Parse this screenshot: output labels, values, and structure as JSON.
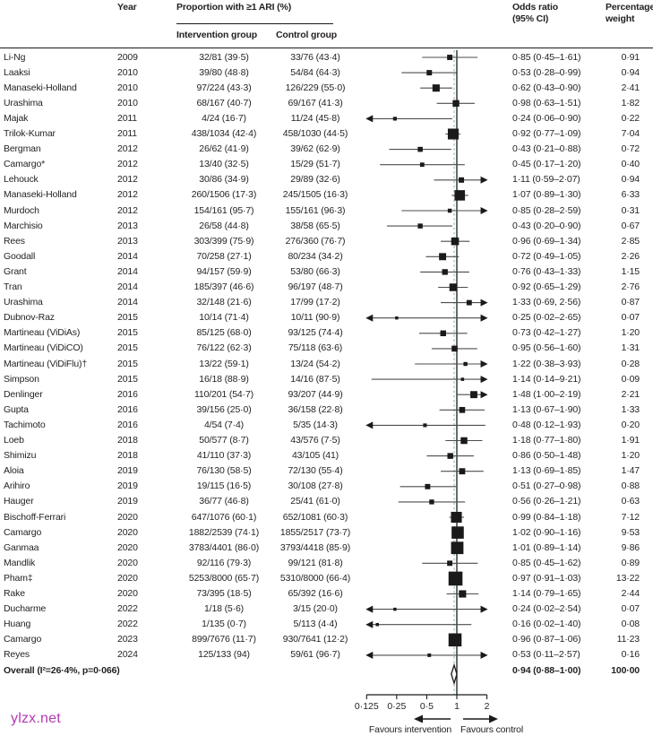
{
  "header": {
    "col_year": "Year",
    "col_proportion": "Proportion with ≥1 ARI (%)",
    "col_intervention": "Intervention group",
    "col_control": "Control group",
    "col_odds_ratio": "Odds ratio (95% CI)",
    "col_weight": "Percentage weight"
  },
  "watermark": "ylzx.net",
  "colors": {
    "text": "#231f20",
    "marker": "#1a1a1a",
    "ci_line": "#4d4d4d",
    "dashed_overall_line": "#a5c7cd",
    "watermark": "#b23ab2"
  },
  "chart_data": {
    "type": "forest",
    "title": "",
    "xlabel_left": "Favours intervention",
    "xlabel_right": "Favours control",
    "favours_left": "Favours intervention",
    "favours_right": "Favours control",
    "axis": {
      "scale": "log2",
      "min": 0.125,
      "max": 2,
      "null_line": 1,
      "ticks": [
        0.125,
        0.25,
        0.5,
        1,
        2
      ],
      "tick_labels": [
        "0·125",
        "0·25",
        "0·5",
        "1",
        "2"
      ]
    },
    "rows": [
      {
        "study": "Li-Ng",
        "year": "2009",
        "intervention": "32/81 (39·5)",
        "control": "33/76 (43·4)",
        "or_text": "0·85 (0·45–1·61)",
        "or": 0.85,
        "lo": 0.45,
        "hi": 1.61,
        "weight_text": "0·91",
        "weight": 0.91
      },
      {
        "study": "Laaksi",
        "year": "2010",
        "intervention": "39/80 (48·8)",
        "control": "54/84 (64·3)",
        "or_text": "0·53 (0·28–0·99)",
        "or": 0.53,
        "lo": 0.28,
        "hi": 0.99,
        "weight_text": "0·94",
        "weight": 0.94
      },
      {
        "study": "Manaseki-Holland",
        "year": "2010",
        "intervention": "97/224 (43·3)",
        "control": "126/229 (55·0)",
        "or_text": "0·62 (0·43–0·90)",
        "or": 0.62,
        "lo": 0.43,
        "hi": 0.9,
        "weight_text": "2·41",
        "weight": 2.41
      },
      {
        "study": "Urashima",
        "year": "2010",
        "intervention": "68/167 (40·7)",
        "control": "69/167 (41·3)",
        "or_text": "0·98 (0·63–1·51)",
        "or": 0.98,
        "lo": 0.63,
        "hi": 1.51,
        "weight_text": "1·82",
        "weight": 1.82
      },
      {
        "study": "Majak",
        "year": "2011",
        "intervention": "4/24 (16·7)",
        "control": "11/24 (45·8)",
        "or_text": "0·24 (0·06–0·90)",
        "or": 0.24,
        "lo": 0.06,
        "hi": 0.9,
        "weight_text": "0·22",
        "weight": 0.22
      },
      {
        "study": "Trilok-Kumar",
        "year": "2011",
        "intervention": "438/1034 (42·4)",
        "control": "458/1030 (44·5)",
        "or_text": "0·92 (0·77–1·09)",
        "or": 0.92,
        "lo": 0.77,
        "hi": 1.09,
        "weight_text": "7·04",
        "weight": 7.04
      },
      {
        "study": "Bergman",
        "year": "2012",
        "intervention": "26/62 (41·9)",
        "control": "39/62 (62·9)",
        "or_text": "0·43 (0·21–0·88)",
        "or": 0.43,
        "lo": 0.21,
        "hi": 0.88,
        "weight_text": "0·72",
        "weight": 0.72
      },
      {
        "study": "Camargo*",
        "year": "2012",
        "intervention": "13/40 (32·5)",
        "control": "15/29 (51·7)",
        "or_text": "0·45 (0·17–1·20)",
        "or": 0.45,
        "lo": 0.17,
        "hi": 1.2,
        "weight_text": "0·40",
        "weight": 0.4
      },
      {
        "study": "Lehouck",
        "year": "2012",
        "intervention": "30/86 (34·9)",
        "control": "29/89 (32·6)",
        "or_text": "1·11 (0·59–2·07)",
        "or": 1.11,
        "lo": 0.59,
        "hi": 2.07,
        "weight_text": "0·94",
        "weight": 0.94
      },
      {
        "study": "Manaseki-Holland",
        "year": "2012",
        "intervention": "260/1506 (17·3)",
        "control": "245/1505 (16·3)",
        "or_text": "1·07 (0·89–1·30)",
        "or": 1.07,
        "lo": 0.89,
        "hi": 1.3,
        "weight_text": "6·33",
        "weight": 6.33
      },
      {
        "study": "Murdoch",
        "year": "2012",
        "intervention": "154/161 (95·7)",
        "control": "155/161 (96·3)",
        "or_text": "0·85 (0·28–2·59)",
        "or": 0.85,
        "lo": 0.28,
        "hi": 2.59,
        "weight_text": "0·31",
        "weight": 0.31
      },
      {
        "study": "Marchisio",
        "year": "2013",
        "intervention": "26/58 (44·8)",
        "control": "38/58 (65·5)",
        "or_text": "0·43 (0·20–0·90)",
        "or": 0.43,
        "lo": 0.2,
        "hi": 0.9,
        "weight_text": "0·67",
        "weight": 0.67
      },
      {
        "study": "Rees",
        "year": "2013",
        "intervention": "303/399 (75·9)",
        "control": "276/360 (76·7)",
        "or_text": "0·96 (0·69–1·34)",
        "or": 0.96,
        "lo": 0.69,
        "hi": 1.34,
        "weight_text": "2·85",
        "weight": 2.85
      },
      {
        "study": "Goodall",
        "year": "2014",
        "intervention": "70/258 (27·1)",
        "control": "80/234 (34·2)",
        "or_text": "0·72 (0·49–1·05)",
        "or": 0.72,
        "lo": 0.49,
        "hi": 1.05,
        "weight_text": "2·26",
        "weight": 2.26
      },
      {
        "study": "Grant",
        "year": "2014",
        "intervention": "94/157 (59·9)",
        "control": "53/80 (66·3)",
        "or_text": "0·76 (0·43–1·33)",
        "or": 0.76,
        "lo": 0.43,
        "hi": 1.33,
        "weight_text": "1·15",
        "weight": 1.15
      },
      {
        "study": "Tran",
        "year": "2014",
        "intervention": "185/397 (46·6)",
        "control": "96/197 (48·7)",
        "or_text": "0·92 (0·65–1·29)",
        "or": 0.92,
        "lo": 0.65,
        "hi": 1.29,
        "weight_text": "2·76",
        "weight": 2.76
      },
      {
        "study": "Urashima",
        "year": "2014",
        "intervention": "32/148 (21·6)",
        "control": "17/99 (17·2)",
        "or_text": "1·33 (0·69, 2·56)",
        "or": 1.33,
        "lo": 0.69,
        "hi": 2.56,
        "weight_text": "0·87",
        "weight": 0.87
      },
      {
        "study": "Dubnov-Raz",
        "year": "2015",
        "intervention": "10/14 (71·4)",
        "control": "10/11 (90·9)",
        "or_text": "0·25 (0·02–2·65)",
        "or": 0.25,
        "lo": 0.02,
        "hi": 2.65,
        "weight_text": "0·07",
        "weight": 0.07
      },
      {
        "study": "Martineau (ViDiAs)",
        "year": "2015",
        "intervention": "85/125 (68·0)",
        "control": "93/125 (74·4)",
        "or_text": "0·73 (0·42–1·27)",
        "or": 0.73,
        "lo": 0.42,
        "hi": 1.27,
        "weight_text": "1·20",
        "weight": 1.2
      },
      {
        "study": "Martineau (ViDiCO)",
        "year": "2015",
        "intervention": "76/122 (62·3)",
        "control": "75/118 (63·6)",
        "or_text": "0·95 (0·56–1·60)",
        "or": 0.95,
        "lo": 0.56,
        "hi": 1.6,
        "weight_text": "1·31",
        "weight": 1.31
      },
      {
        "study": "Martineau (ViDiFlu)†",
        "year": "2015",
        "intervention": "13/22 (59·1)",
        "control": "13/24 (54·2)",
        "or_text": "1·22 (0·38–3·93)",
        "or": 1.22,
        "lo": 0.38,
        "hi": 3.93,
        "weight_text": "0·28",
        "weight": 0.28
      },
      {
        "study": "Simpson",
        "year": "2015",
        "intervention": "16/18 (88·9)",
        "control": "14/16 (87·5)",
        "or_text": "1·14 (0·14–9·21)",
        "or": 1.14,
        "lo": 0.14,
        "hi": 9.21,
        "weight_text": "0·09",
        "weight": 0.09
      },
      {
        "study": "Denlinger",
        "year": "2016",
        "intervention": "110/201 (54·7)",
        "control": "93/207 (44·9)",
        "or_text": "1·48 (1·00–2·19)",
        "or": 1.48,
        "lo": 1.0,
        "hi": 2.19,
        "weight_text": "2·21",
        "weight": 2.21
      },
      {
        "study": "Gupta",
        "year": "2016",
        "intervention": "39/156 (25·0)",
        "control": "36/158 (22·8)",
        "or_text": "1·13 (0·67–1·90)",
        "or": 1.13,
        "lo": 0.67,
        "hi": 1.9,
        "weight_text": "1·33",
        "weight": 1.33
      },
      {
        "study": "Tachimoto",
        "year": "2016",
        "intervention": "4/54 (7·4)",
        "control": "5/35 (14·3)",
        "or_text": "0·48 (0·12–1·93)",
        "or": 0.48,
        "lo": 0.12,
        "hi": 1.93,
        "weight_text": "0·20",
        "weight": 0.2
      },
      {
        "study": "Loeb",
        "year": "2018",
        "intervention": "50/577 (8·7)",
        "control": "43/576 (7·5)",
        "or_text": "1·18 (0·77–1·80)",
        "or": 1.18,
        "lo": 0.77,
        "hi": 1.8,
        "weight_text": "1·91",
        "weight": 1.91
      },
      {
        "study": "Shimizu",
        "year": "2018",
        "intervention": "41/110 (37·3)",
        "control": "43/105 (41)",
        "or_text": "0·86 (0·50–1·48)",
        "or": 0.86,
        "lo": 0.5,
        "hi": 1.48,
        "weight_text": "1·20",
        "weight": 1.2
      },
      {
        "study": "Aloia",
        "year": "2019",
        "intervention": "76/130 (58·5)",
        "control": "72/130 (55·4)",
        "or_text": "1·13 (0·69–1·85)",
        "or": 1.13,
        "lo": 0.69,
        "hi": 1.85,
        "weight_text": "1·47",
        "weight": 1.47
      },
      {
        "study": "Arihiro",
        "year": "2019",
        "intervention": "19/115 (16·5)",
        "control": "30/108 (27·8)",
        "or_text": "0·51 (0·27–0·98)",
        "or": 0.51,
        "lo": 0.27,
        "hi": 0.98,
        "weight_text": "0·88",
        "weight": 0.88
      },
      {
        "study": "Hauger",
        "year": "2019",
        "intervention": "36/77 (46·8)",
        "control": "25/41 (61·0)",
        "or_text": "0·56 (0·26–1·21)",
        "or": 0.56,
        "lo": 0.26,
        "hi": 1.21,
        "weight_text": "0·63",
        "weight": 0.63
      },
      {
        "study": "Bischoff-Ferrari",
        "year": "2020",
        "intervention": "647/1076 (60·1)",
        "control": "652/1081 (60·3)",
        "or_text": "0·99 (0·84–1·18)",
        "or": 0.99,
        "lo": 0.84,
        "hi": 1.18,
        "weight_text": "7·12",
        "weight": 7.12
      },
      {
        "study": "Camargo",
        "year": "2020",
        "intervention": "1882/2539 (74·1)",
        "control": "1855/2517 (73·7)",
        "or_text": "1·02 (0·90–1·16)",
        "or": 1.02,
        "lo": 0.9,
        "hi": 1.16,
        "weight_text": "9·53",
        "weight": 9.53
      },
      {
        "study": "Ganmaa",
        "year": "2020",
        "intervention": "3783/4401 (86·0)",
        "control": "3793/4418 (85·9)",
        "or_text": "1·01 (0·89–1·14)",
        "or": 1.01,
        "lo": 0.89,
        "hi": 1.14,
        "weight_text": "9·86",
        "weight": 9.86
      },
      {
        "study": "Mandlik",
        "year": "2020",
        "intervention": "92/116 (79·3)",
        "control": "99/121 (81·8)",
        "or_text": "0·85 (0·45–1·62)",
        "or": 0.85,
        "lo": 0.45,
        "hi": 1.62,
        "weight_text": "0·89",
        "weight": 0.89
      },
      {
        "study": "Pham‡",
        "year": "2020",
        "intervention": "5253/8000 (65·7)",
        "control": "5310/8000 (66·4)",
        "or_text": "0·97 (0·91–1·03)",
        "or": 0.97,
        "lo": 0.91,
        "hi": 1.03,
        "weight_text": "13·22",
        "weight": 13.22
      },
      {
        "study": "Rake",
        "year": "2020",
        "intervention": "73/395 (18·5)",
        "control": "65/392 (16·6)",
        "or_text": "1·14 (0·79–1·65)",
        "or": 1.14,
        "lo": 0.79,
        "hi": 1.65,
        "weight_text": "2·44",
        "weight": 2.44
      },
      {
        "study": "Ducharme",
        "year": "2022",
        "intervention": "1/18 (5·6)",
        "control": "3/15 (20·0)",
        "or_text": "0·24 (0·02–2·54)",
        "or": 0.24,
        "lo": 0.02,
        "hi": 2.54,
        "weight_text": "0·07",
        "weight": 0.07
      },
      {
        "study": "Huang",
        "year": "2022",
        "intervention": "1/135 (0·7)",
        "control": "5/113 (4·4)",
        "or_text": "0·16 (0·02–1·40)",
        "or": 0.16,
        "lo": 0.02,
        "hi": 1.4,
        "weight_text": "0·08",
        "weight": 0.08
      },
      {
        "study": "Camargo",
        "year": "2023",
        "intervention": "899/7676 (11·7)",
        "control": "930/7641 (12·2)",
        "or_text": "0·96 (0·87–1·06)",
        "or": 0.96,
        "lo": 0.87,
        "hi": 1.06,
        "weight_text": "11·23",
        "weight": 11.23
      },
      {
        "study": "Reyes",
        "year": "2024",
        "intervention": "125/133 (94)",
        "control": "59/61 (96·7)",
        "or_text": "0·53 (0·11–2·57)",
        "or": 0.53,
        "lo": 0.11,
        "hi": 2.57,
        "weight_text": "0·16",
        "weight": 0.16
      }
    ],
    "overall": {
      "label": "Overall (I²=26·4%, p=0·066)",
      "year": "",
      "intervention": "",
      "control": "",
      "or_text": "0·94 (0·88–1·00)",
      "or": 0.94,
      "lo": 0.88,
      "hi": 1.0,
      "weight_text": "100·00",
      "weight": 100.0
    }
  }
}
